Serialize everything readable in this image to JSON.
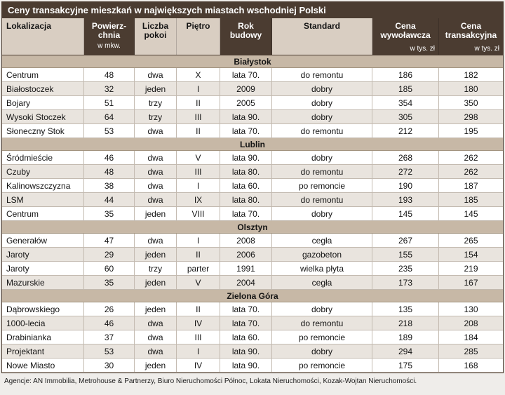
{
  "title": "Ceny transakcyjne mieszkań w największych miastach wschodniej Polski",
  "header": {
    "cells": [
      {
        "label": "Lokalizacja",
        "sub": ""
      },
      {
        "label": "Powierz-\nchnia",
        "sub": "w mkw."
      },
      {
        "label": "Liczba\npokoi",
        "sub": ""
      },
      {
        "label": "Piętro",
        "sub": ""
      },
      {
        "label": "Rok\nbudowy",
        "sub": ""
      },
      {
        "label": "Standard",
        "sub": ""
      },
      {
        "label": "Cena\nwywoławcza",
        "sub": "w tys. zł"
      },
      {
        "label": "Cena\ntransakcyjna",
        "sub": "w tys. zł"
      }
    ]
  },
  "footer": "Agencje: AN Immobilia, Metrohouse & Partnerzy,  Biuro Nieruchomości Północ, Lokata Nieruchomości, Kozak-Wojtan Nieruchomości.",
  "colors": {
    "header_dark": "#4b3c31",
    "header_light": "#d9cec2",
    "section_band": "#c7b8a6",
    "row_alt": "#e9e4de"
  },
  "chart_data": {
    "type": "table",
    "title": "Ceny transakcyjne mieszkań w największych miastach wschodniej Polski",
    "columns": [
      "Lokalizacja",
      "Powierzchnia w mkw.",
      "Liczba pokoi",
      "Piętro",
      "Rok budowy",
      "Standard",
      "Cena wywoławcza w tys. zł",
      "Cena transakcyjna w tys. zł"
    ],
    "sections": [
      {
        "name": "Białystok",
        "rows": [
          [
            "Centrum",
            "48",
            "dwa",
            "X",
            "lata 70.",
            "do remontu",
            "186",
            "182"
          ],
          [
            "Białostoczek",
            "32",
            "jeden",
            "I",
            "2009",
            "dobry",
            "185",
            "180"
          ],
          [
            "Bojary",
            "51",
            "trzy",
            "II",
            "2005",
            "dobry",
            "354",
            "350"
          ],
          [
            "Wysoki Stoczek",
            "64",
            "trzy",
            "III",
            "lata 90.",
            "dobry",
            "305",
            "298"
          ],
          [
            "Słoneczny Stok",
            "53",
            "dwa",
            "II",
            "lata 70.",
            "do remontu",
            "212",
            "195"
          ]
        ]
      },
      {
        "name": "Lublin",
        "rows": [
          [
            "Śródmieście",
            "46",
            "dwa",
            "V",
            "lata 90.",
            "dobry",
            "268",
            "262"
          ],
          [
            "Czuby",
            "48",
            "dwa",
            "III",
            "lata 80.",
            "do remontu",
            "272",
            "262"
          ],
          [
            "Kalinowszczyzna",
            "38",
            "dwa",
            "I",
            "lata 60.",
            "po remoncie",
            "190",
            "187"
          ],
          [
            "LSM",
            "44",
            "dwa",
            "IX",
            "lata 80.",
            "do remontu",
            "193",
            "185"
          ],
          [
            "Centrum",
            "35",
            "jeden",
            "VIII",
            "lata 70.",
            "dobry",
            "145",
            "145"
          ]
        ]
      },
      {
        "name": "Olsztyn",
        "rows": [
          [
            "Generałów",
            "47",
            "dwa",
            "I",
            "2008",
            "cegła",
            "267",
            "265"
          ],
          [
            "Jaroty",
            "29",
            "jeden",
            "II",
            "2006",
            "gazobeton",
            "155",
            "154"
          ],
          [
            "Jaroty",
            "60",
            "trzy",
            "parter",
            "1991",
            "wielka płyta",
            "235",
            "219"
          ],
          [
            "Mazurskie",
            "35",
            "jeden",
            "V",
            "2004",
            "cegła",
            "173",
            "167"
          ]
        ]
      },
      {
        "name": "Zielona Góra",
        "rows": [
          [
            "Dąbrowskiego",
            "26",
            "jeden",
            "II",
            "lata 70.",
            "dobry",
            "135",
            "130"
          ],
          [
            "1000-lecia",
            "46",
            "dwa",
            "IV",
            "lata 70.",
            "do remontu",
            "218",
            "208"
          ],
          [
            "Drabinianka",
            "37",
            "dwa",
            "III",
            "lata 60.",
            "po remoncie",
            "189",
            "184"
          ],
          [
            "Projektant",
            "53",
            "dwa",
            "I",
            "lata 90.",
            "dobry",
            "294",
            "285"
          ],
          [
            "Nowe Miasto",
            "30",
            "jeden",
            "IV",
            "lata 90.",
            "po remoncie",
            "175",
            "168"
          ]
        ]
      }
    ]
  }
}
